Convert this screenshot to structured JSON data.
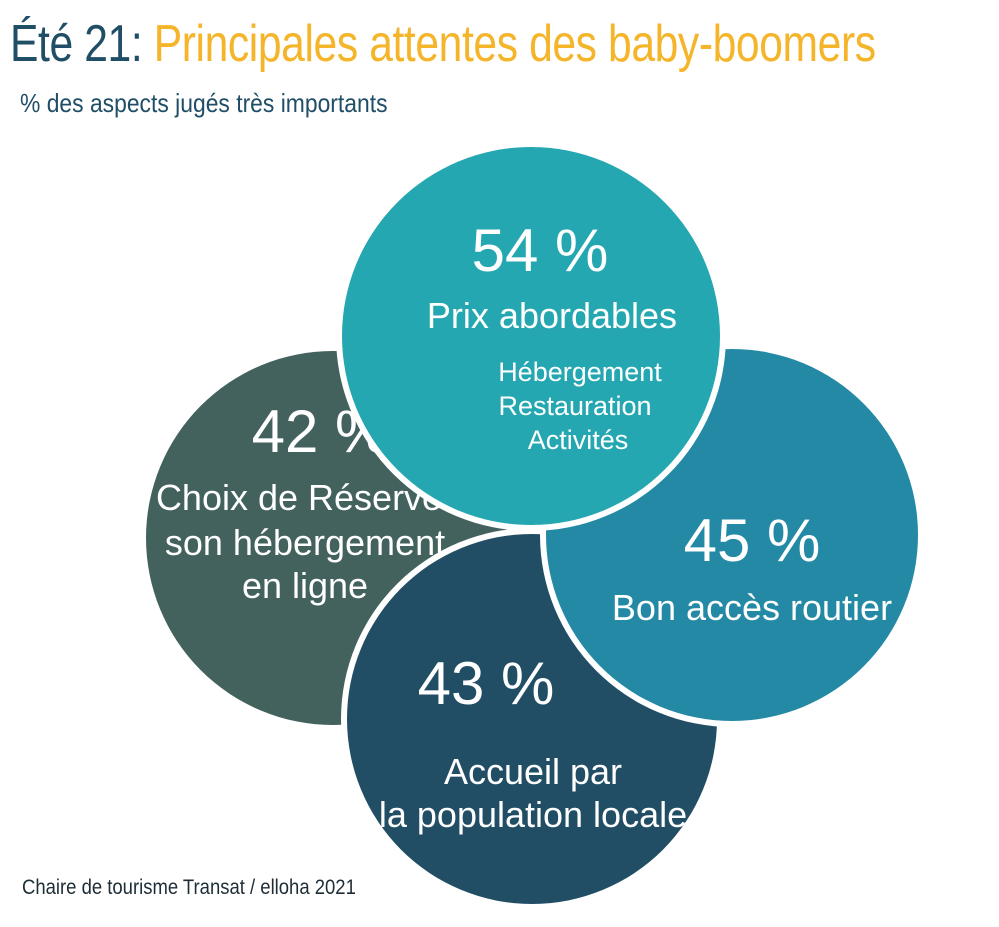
{
  "header": {
    "title_lead": "Été 21:",
    "title_main": "Principales attentes des baby-boomers",
    "subtitle": "% des aspects jugés très importants"
  },
  "footer": {
    "source": "Chaire de tourisme Transat / elloha 2021"
  },
  "colors": {
    "title_lead": "#1f4e66",
    "title_main": "#f4b52b",
    "circle_prix": "#24a7b1",
    "circle_routier": "#2489a5",
    "circle_accueil": "#214e65",
    "circle_reserver": "#43625d"
  },
  "chart_data": {
    "type": "bubble",
    "title": "Principales attentes des baby-boomers",
    "unit": "%",
    "items": [
      {
        "value_label": "54 %",
        "value": 54,
        "label_lines": [
          "Prix abordables"
        ],
        "detail_lines": [
          "Hébergement",
          "Restauration",
          "Activités"
        ]
      },
      {
        "value_label": "45 %",
        "value": 45,
        "label_lines": [
          "Bon accès routier"
        ]
      },
      {
        "value_label": "43 %",
        "value": 43,
        "label_lines": [
          "Accueil par",
          "la population locale"
        ]
      },
      {
        "value_label": "42 %",
        "value": 42,
        "label_lines": [
          "Choix de Réserver",
          "son hébergement",
          "en ligne"
        ]
      }
    ]
  }
}
